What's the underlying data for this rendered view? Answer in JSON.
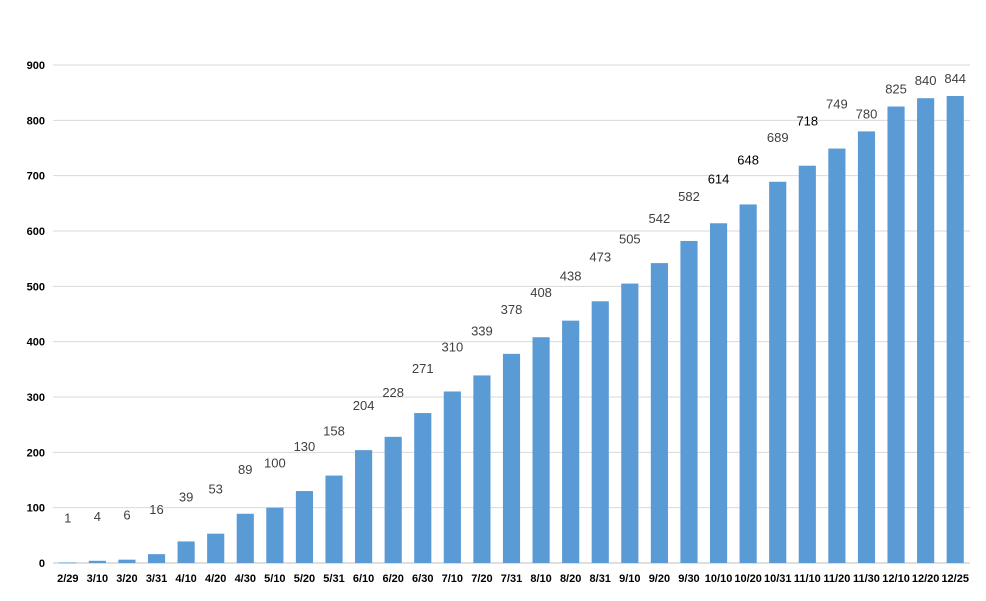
{
  "chart_data": {
    "type": "bar",
    "title": "",
    "xlabel": "",
    "ylabel": "",
    "ylim": [
      0,
      900
    ],
    "yticks": [
      0,
      100,
      200,
      300,
      400,
      500,
      600,
      700,
      800,
      900
    ],
    "grid": true,
    "legend": "none",
    "categories": [
      "2/29",
      "3/10",
      "3/20",
      "3/31",
      "4/10",
      "4/20",
      "4/30",
      "5/10",
      "5/20",
      "5/31",
      "6/10",
      "6/20",
      "6/30",
      "7/10",
      "7/20",
      "7/31",
      "8/10",
      "8/20",
      "8/31",
      "9/10",
      "9/20",
      "9/30",
      "10/10",
      "10/20",
      "10/31",
      "11/10",
      "11/20",
      "11/30",
      "12/10",
      "12/20",
      "12/25"
    ],
    "values": [
      1,
      4,
      6,
      16,
      39,
      53,
      89,
      100,
      130,
      158,
      204,
      228,
      271,
      310,
      339,
      378,
      408,
      438,
      473,
      505,
      542,
      582,
      614,
      648,
      689,
      718,
      749,
      780,
      825,
      840,
      844
    ],
    "data_labels": [
      "1",
      "4",
      "6",
      "16",
      "39",
      "53",
      "89",
      "100",
      "130",
      "158",
      "204",
      "228",
      "271",
      "310",
      "339",
      "378",
      "408",
      "438",
      "473",
      "505",
      "542",
      "582",
      "614",
      "648",
      "689",
      "718",
      "749",
      "780",
      "825",
      "840",
      "844"
    ],
    "colors": {
      "bar": "#5b9bd5",
      "label": "#404040",
      "label_strong": "#000000",
      "label_highlight": "#ff0000",
      "gridline": "#d9d9d9"
    },
    "highlight_index": 30,
    "strong_label_indices": [
      22,
      23,
      25
    ]
  }
}
